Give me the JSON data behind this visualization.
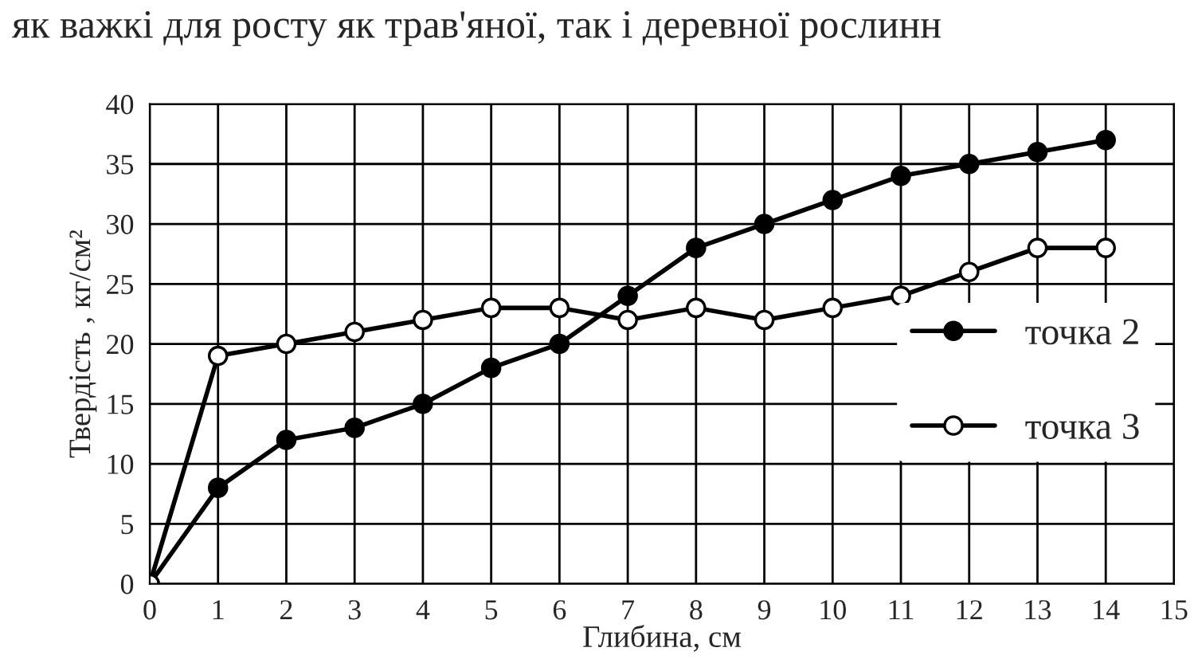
{
  "chart_data": {
    "type": "line",
    "annotations": [
      "як важкі для росту як трав'яної, так і деревної рослинн"
    ],
    "xlabel": "Глибина, см",
    "ylabel": "Твердість , кг/см²",
    "x": [
      0,
      1,
      2,
      3,
      4,
      5,
      6,
      7,
      8,
      9,
      10,
      11,
      12,
      13,
      14
    ],
    "series": [
      {
        "name": "точка 2",
        "color": "#000000",
        "values": [
          0,
          8,
          12,
          13,
          15,
          18,
          20,
          24,
          28,
          30,
          32,
          34,
          35,
          36,
          37
        ]
      },
      {
        "name": "точка 3",
        "color": "#ffffff",
        "values": [
          0,
          19,
          20,
          21,
          22,
          23,
          23,
          22,
          23,
          22,
          23,
          24,
          26,
          28,
          28
        ]
      }
    ],
    "xlim": [
      0,
      15
    ],
    "xticks": [
      0,
      1,
      2,
      3,
      4,
      5,
      6,
      7,
      8,
      9,
      10,
      11,
      12,
      13,
      14,
      15
    ],
    "ylim": [
      0,
      40
    ],
    "yticks": [
      0,
      5,
      10,
      15,
      20,
      25,
      30,
      35,
      40
    ],
    "grid": true,
    "legend": "right",
    "marker": "circle",
    "line_style": "solid"
  }
}
